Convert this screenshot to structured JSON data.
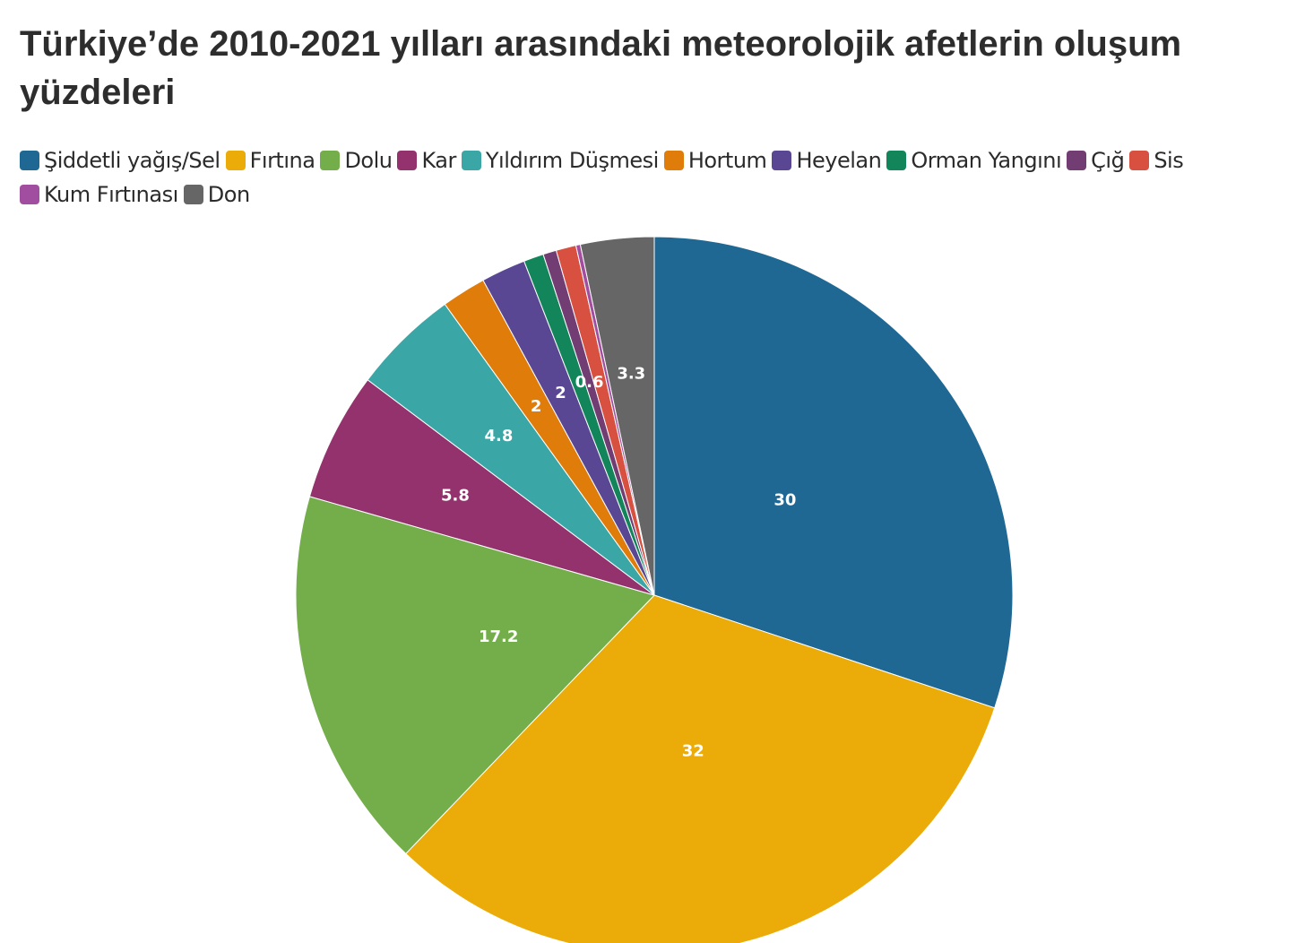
{
  "title": "Türkiye’de 2010-2021 yılları arasındaki meteorolojik afetlerin oluşum yüzdeleri",
  "chart_data": {
    "type": "pie",
    "title": "Türkiye’de 2010-2021 yılları arasındaki meteorolojik afetlerin oluşum yüzdeleri",
    "start": "12 o'clock",
    "direction": "clockwise",
    "legend_position": "top",
    "slices": [
      {
        "name": "Şiddetli yağış/Sel",
        "value": 30,
        "label": "30",
        "color": "#1f6894"
      },
      {
        "name": "Fırtına",
        "value": 32,
        "label": "32",
        "color": "#ebac09"
      },
      {
        "name": "Dolu",
        "value": 17.2,
        "label": "17.2",
        "color": "#73ae4a"
      },
      {
        "name": "Kar",
        "value": 5.8,
        "label": "5.8",
        "color": "#93326c"
      },
      {
        "name": "Yıldırım Düşmesi",
        "value": 4.8,
        "label": "4.8",
        "color": "#3aa6a6"
      },
      {
        "name": "Hortum",
        "value": 2,
        "label": "2",
        "color": "#e07c0a"
      },
      {
        "name": "Heyelan",
        "value": 2,
        "label": "2",
        "color": "#5a4793"
      },
      {
        "name": "Orman Yangını",
        "value": 0.9,
        "label": "",
        "color": "#12855a"
      },
      {
        "name": "Çığ",
        "value": 0.6,
        "label": "0.6",
        "color": "#713d72"
      },
      {
        "name": "Sis",
        "value": 0.9,
        "label": "",
        "color": "#d8503f"
      },
      {
        "name": "Kum Fırtınası",
        "value": 0.2,
        "label": "",
        "color": "#a24ea0"
      },
      {
        "name": "Don",
        "value": 3.3,
        "label": "3.3",
        "color": "#666666"
      }
    ]
  }
}
